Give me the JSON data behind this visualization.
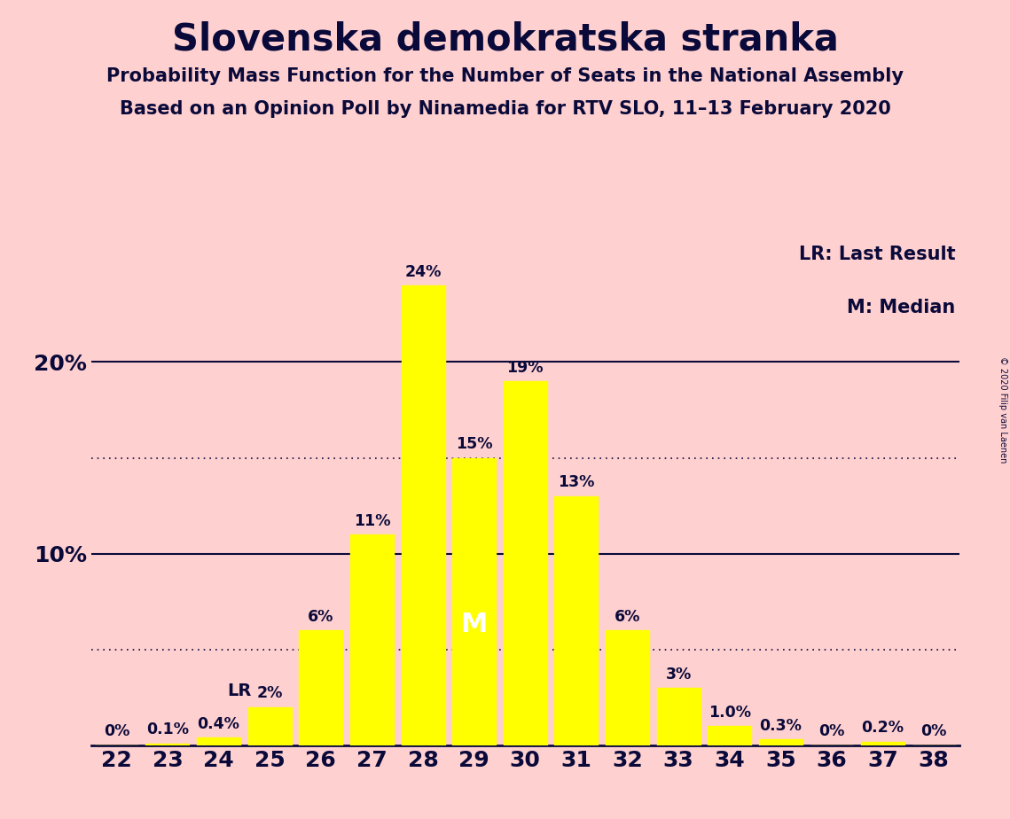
{
  "title": "Slovenska demokratska stranka",
  "subtitle1": "Probability Mass Function for the Number of Seats in the National Assembly",
  "subtitle2": "Based on an Opinion Poll by Ninamedia for RTV SLO, 11–13 February 2020",
  "copyright": "© 2020 Filip van Laenen",
  "seats": [
    22,
    23,
    24,
    25,
    26,
    27,
    28,
    29,
    30,
    31,
    32,
    33,
    34,
    35,
    36,
    37,
    38
  ],
  "probabilities": [
    0.0,
    0.1,
    0.4,
    2.0,
    6.0,
    11.0,
    24.0,
    15.0,
    19.0,
    13.0,
    6.0,
    3.0,
    1.0,
    0.3,
    0.0,
    0.2,
    0.0
  ],
  "labels": [
    "0%",
    "0.1%",
    "0.4%",
    "2%",
    "6%",
    "11%",
    "24%",
    "15%",
    "19%",
    "13%",
    "6%",
    "3%",
    "1.0%",
    "0.3%",
    "0%",
    "0.2%",
    "0%"
  ],
  "bar_color": "#FFFF00",
  "background_color": "#FFD0D0",
  "text_color": "#0A0A3A",
  "last_result_seat": 25,
  "median_seat": 29,
  "legend_lr": "LR: Last Result",
  "legend_m": "M: Median",
  "median_label": "M",
  "lr_label": "LR",
  "ylim_max": 26.5,
  "solid_lines": [
    10.0,
    20.0
  ],
  "dotted_lines": [
    5.0,
    15.0
  ]
}
